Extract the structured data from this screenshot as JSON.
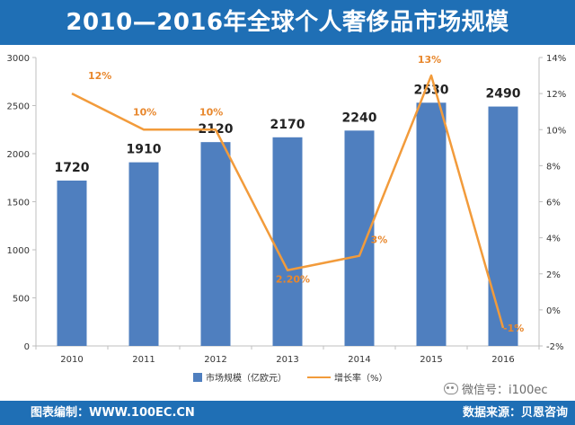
{
  "header": {
    "title": "2010—2016年全球个人奢侈品市场规模"
  },
  "footer": {
    "left_text": "图表编制：WWW.100EC.CN",
    "right_text": "数据来源：贝恩咨询"
  },
  "watermark": {
    "text": "微信号：i100ec"
  },
  "colors": {
    "brand_blue": "#1f6fb5",
    "bar_color": "#4f7fbf",
    "line_color": "#f29b3b",
    "label_orange": "#e8872c"
  },
  "chart_data": {
    "type": "bar",
    "categories": [
      "2010",
      "2011",
      "2012",
      "2013",
      "2014",
      "2015",
      "2016"
    ],
    "series": [
      {
        "name": "市场规模（亿欧元）",
        "type": "bar",
        "axis": "left",
        "values": [
          1720,
          1910,
          2120,
          2170,
          2240,
          2530,
          2490
        ],
        "labels": [
          "1720",
          "1910",
          "2120",
          "2170",
          "2240",
          "2530",
          "2490"
        ]
      },
      {
        "name": "增长率（%）",
        "type": "line",
        "axis": "right",
        "values": [
          12,
          10,
          10,
          2.2,
          3,
          13,
          -1
        ],
        "labels": [
          "12%",
          "10%",
          "10%",
          "2.20%",
          "3%",
          "13%",
          "-1%"
        ]
      }
    ],
    "y_left": {
      "min": 0,
      "max": 3000,
      "ticks": [
        0,
        500,
        1000,
        1500,
        2000,
        2500,
        3000
      ],
      "tick_labels": [
        "0",
        "500",
        "1000",
        "1500",
        "2000",
        "2500",
        "3000"
      ]
    },
    "y_right": {
      "min": -2,
      "max": 14,
      "ticks": [
        -2,
        0,
        2,
        4,
        6,
        8,
        10,
        12,
        14
      ],
      "tick_labels": [
        "-2%",
        "0%",
        "2%",
        "4%",
        "6%",
        "8%",
        "10%",
        "12%",
        "14%"
      ]
    },
    "grid": false,
    "legend_position": "bottom"
  }
}
